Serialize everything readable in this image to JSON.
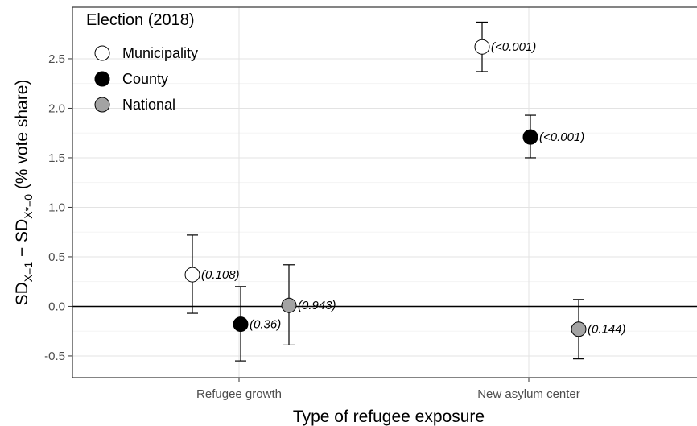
{
  "chart_data": {
    "type": "scatter",
    "subtype": "point-range",
    "xlabel": "Type of refugee exposure",
    "ylabel": {
      "prefix": "SD",
      "sub1": "X=1",
      "mid": " − SD",
      "sub2": "X*=0",
      "suffix": " (% vote share)"
    },
    "categories": [
      "Refugee growth",
      "New asylum center"
    ],
    "ylim": [
      -0.72,
      3.02
    ],
    "yticks": [
      -0.5,
      0.0,
      0.5,
      1.0,
      1.5,
      2.0,
      2.5
    ],
    "ytick_labels": [
      "-0.5",
      "0.0",
      "0.5",
      "1.0",
      "1.5",
      "2.0",
      "2.5"
    ],
    "grid": true,
    "reference_line": 0,
    "legend": {
      "title": "Election (2018)",
      "placement": "top-left"
    },
    "series": [
      {
        "name": "Municipality",
        "fill": "#ffffff",
        "points": [
          {
            "category": "Refugee growth",
            "y": 0.32,
            "lower": -0.07,
            "upper": 0.72,
            "label": "(0.108)"
          },
          {
            "category": "New asylum center",
            "y": 2.62,
            "lower": 2.37,
            "upper": 2.87,
            "label": "(<0.001)"
          }
        ]
      },
      {
        "name": "County",
        "fill": "#000000",
        "points": [
          {
            "category": "Refugee growth",
            "y": -0.18,
            "lower": -0.55,
            "upper": 0.2,
            "label": "(0.36)"
          },
          {
            "category": "New asylum center",
            "y": 1.71,
            "lower": 1.5,
            "upper": 1.93,
            "label": "(<0.001)"
          }
        ]
      },
      {
        "name": "National",
        "fill": "#a3a3a3",
        "points": [
          {
            "category": "Refugee growth",
            "y": 0.01,
            "lower": -0.39,
            "upper": 0.42,
            "label": "(0.943)"
          },
          {
            "category": "New asylum center",
            "y": -0.23,
            "lower": -0.53,
            "upper": 0.07,
            "label": "(0.144)"
          }
        ]
      }
    ]
  }
}
